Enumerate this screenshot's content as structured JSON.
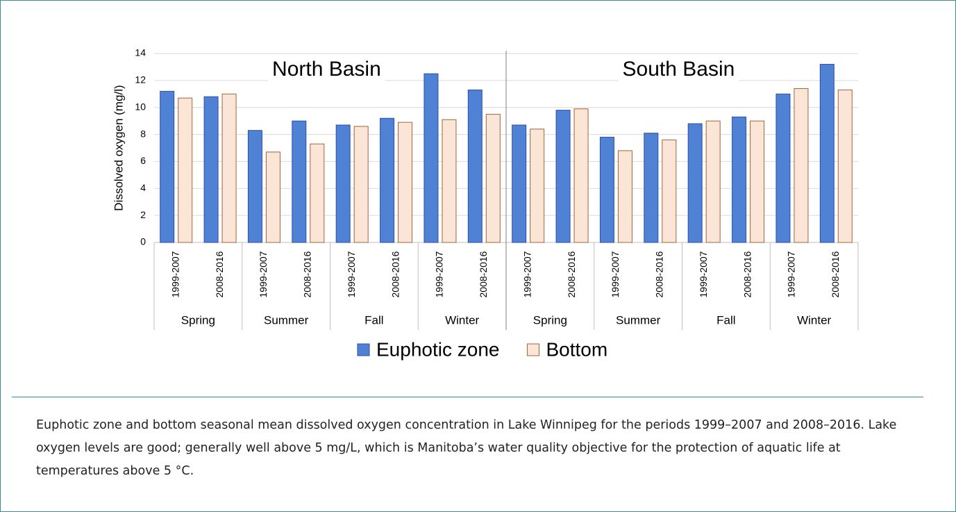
{
  "chart_data": {
    "type": "bar",
    "ylabel": "Dissolved oxygen (mg/l)",
    "ylim": [
      0,
      14
    ],
    "yticks": [
      0,
      2,
      4,
      6,
      8,
      10,
      12,
      14
    ],
    "grid": true,
    "categories": [
      "1999-2007",
      "2008-2016",
      "1999-2007",
      "2008-2016",
      "1999-2007",
      "2008-2016",
      "1999-2007",
      "2008-2016"
    ],
    "groups": [
      "Spring",
      "Summer",
      "Fall",
      "Winter"
    ],
    "series": [
      {
        "name": "Euphotic zone",
        "color": "#4f81d4",
        "edgecolor": "#2f4fa8"
      },
      {
        "name": "Bottom",
        "color": "#fbe5d6",
        "edgecolor": "#a0643c"
      }
    ],
    "panels": [
      {
        "title": "North Basin",
        "values": [
          [
            11.2,
            10.8,
            8.3,
            9.0,
            8.7,
            9.2,
            12.5,
            11.3
          ],
          [
            10.7,
            11.0,
            6.7,
            7.3,
            8.6,
            8.9,
            9.1,
            9.5
          ]
        ]
      },
      {
        "title": "South Basin",
        "values": [
          [
            8.7,
            9.8,
            7.8,
            8.1,
            8.8,
            9.3,
            11.0,
            13.2
          ],
          [
            8.4,
            9.9,
            6.8,
            7.6,
            9.0,
            9.0,
            11.4,
            11.3
          ]
        ]
      }
    ]
  },
  "caption": "Euphotic zone and bottom seasonal mean dissolved oxygen concentration in Lake Winnipeg for the periods 1999–2007 and 2008–2016. Lake oxygen levels are good; generally well above 5 mg/L, which is Manitoba’s water quality objective for the protection of aquatic life at temperatures above 5 °C."
}
